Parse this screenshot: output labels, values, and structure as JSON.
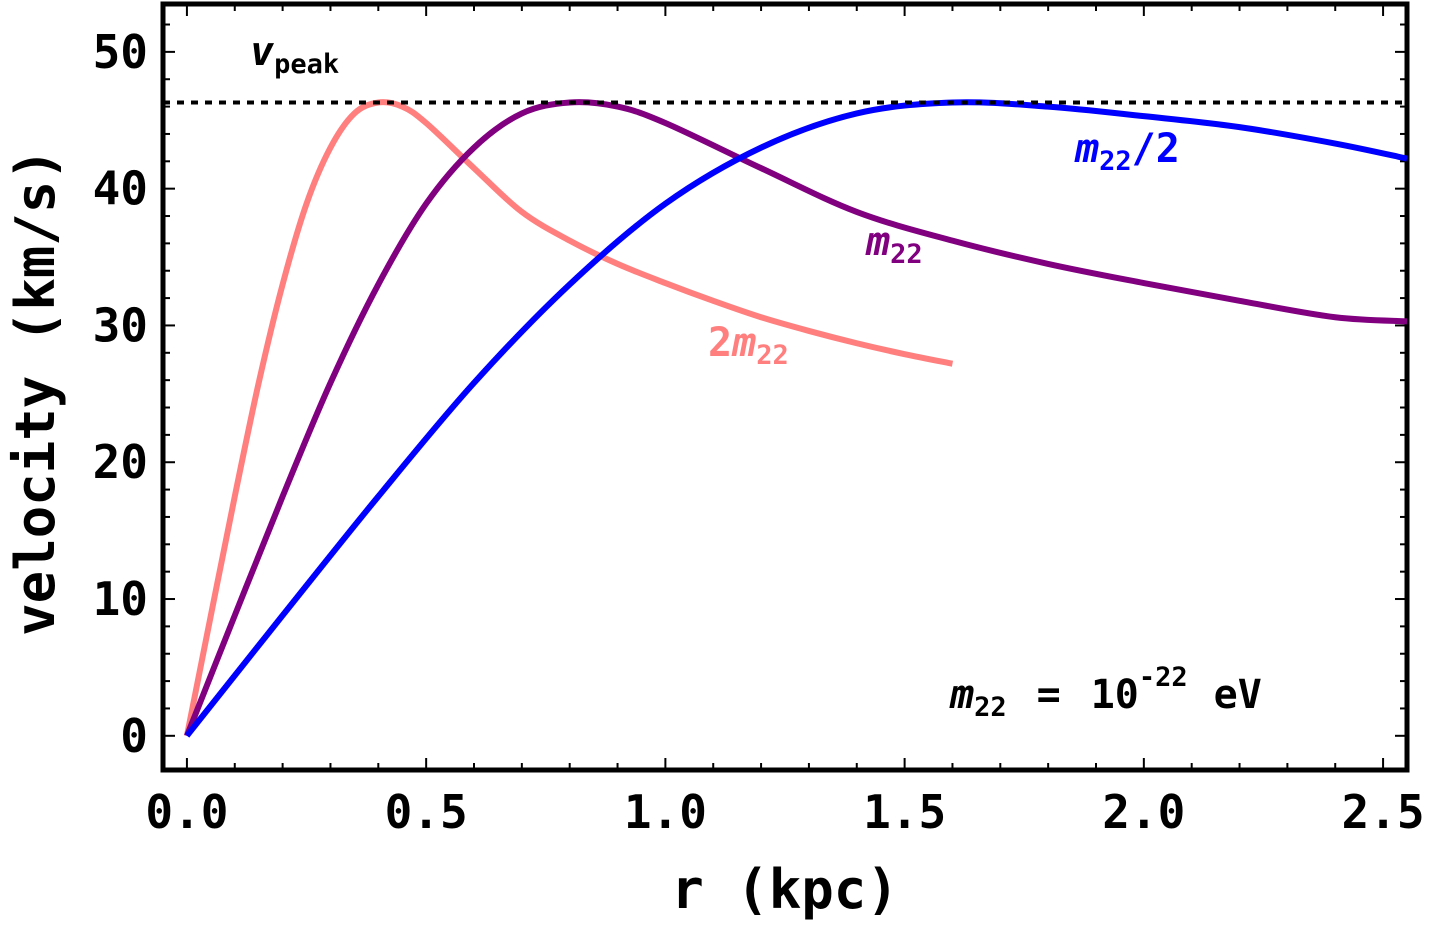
{
  "chart_data": {
    "type": "line",
    "xlabel": "r (kpc)",
    "ylabel": "velocity (km/s)",
    "xlim": [
      -0.05,
      2.55
    ],
    "ylim": [
      -2.5,
      53.5
    ],
    "xticks": [
      0.0,
      0.5,
      1.0,
      1.5,
      2.0,
      2.5
    ],
    "xtick_labels": [
      "0.0",
      "0.5",
      "1.0",
      "1.5",
      "2.0",
      "2.5"
    ],
    "yticks": [
      0,
      10,
      20,
      30,
      40,
      50
    ],
    "ytick_labels": [
      "0",
      "10",
      "20",
      "30",
      "40",
      "50"
    ],
    "reference_line": {
      "name": "v_peak",
      "y": 46.3,
      "style": "dotted",
      "label_main": "v",
      "label_sub": "peak"
    },
    "annotation": {
      "lhs_main": "m",
      "lhs_sub": "22",
      "equals": "=",
      "base": "10",
      "exponent": "-22",
      "unit": "eV"
    },
    "series": [
      {
        "name": "2m22",
        "color": "#FF7F7F",
        "label_parts": [
          "2",
          "m",
          "22",
          ""
        ],
        "x": [
          0.0,
          0.05,
          0.1,
          0.15,
          0.2,
          0.25,
          0.3,
          0.35,
          0.4,
          0.45,
          0.5,
          0.6,
          0.7,
          0.8,
          0.9,
          1.0,
          1.1,
          1.2,
          1.3,
          1.4,
          1.5,
          1.6
        ],
        "y": [
          0.0,
          8.8,
          17.5,
          25.8,
          33.0,
          38.9,
          43.0,
          45.5,
          46.3,
          46.0,
          44.8,
          41.5,
          38.3,
          36.2,
          34.5,
          33.1,
          31.8,
          30.6,
          29.6,
          28.7,
          27.9,
          27.2
        ]
      },
      {
        "name": "m22",
        "color": "#800080",
        "label_parts": [
          "",
          "m",
          "22",
          ""
        ],
        "x": [
          0.0,
          0.1,
          0.2,
          0.3,
          0.4,
          0.5,
          0.6,
          0.7,
          0.8,
          0.9,
          1.0,
          1.2,
          1.4,
          1.6,
          1.8,
          2.0,
          2.2,
          2.4,
          2.55
        ],
        "y": [
          0.0,
          8.8,
          17.5,
          25.8,
          33.0,
          38.9,
          43.0,
          45.5,
          46.3,
          46.0,
          44.8,
          41.5,
          38.3,
          36.2,
          34.5,
          33.1,
          31.8,
          30.6,
          30.3
        ]
      },
      {
        "name": "m22/2",
        "color": "#0000FF",
        "label_parts": [
          "",
          "m",
          "22",
          "/2"
        ],
        "x": [
          0.0,
          0.2,
          0.4,
          0.6,
          0.8,
          1.0,
          1.2,
          1.4,
          1.6,
          1.8,
          2.0,
          2.2,
          2.4,
          2.55
        ],
        "y": [
          0.0,
          8.8,
          17.5,
          25.8,
          33.0,
          38.9,
          43.0,
          45.5,
          46.3,
          46.0,
          45.3,
          44.5,
          43.3,
          42.2
        ]
      }
    ]
  }
}
